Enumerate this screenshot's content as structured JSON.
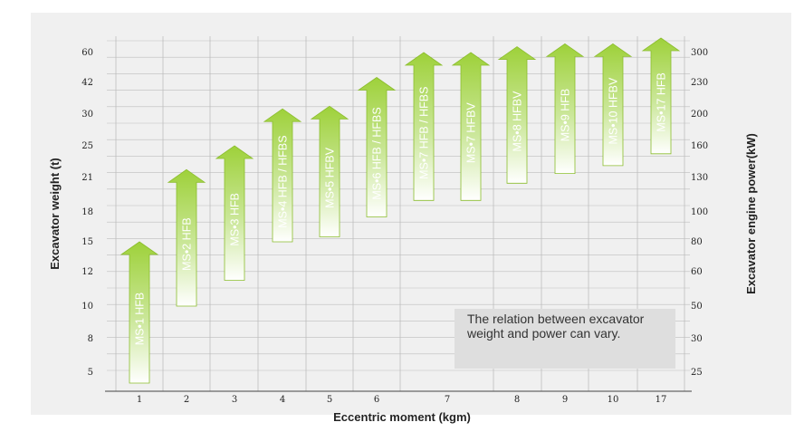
{
  "chart_data": {
    "type": "bar",
    "categories": [
      "1",
      "2",
      "3",
      "4",
      "5",
      "6",
      "7",
      "8",
      "9",
      "10",
      "17"
    ],
    "series": [
      {
        "labels": [
          "MS•1 HFB",
          "MS•2 HFB",
          "MS•3 HFB",
          "MS•4 HFB / HFBS",
          "MS•5 HFBV",
          "MS•6 HFB / HFBS",
          "MS•7 HFB / HFBS",
          "MS•7 HFBV",
          "MS•8 HFBV",
          "MS•9 HFB",
          "MS•10 HFBV",
          "MS•17 HFB"
        ],
        "category_index": [
          0,
          1,
          2,
          3,
          4,
          5,
          6,
          6,
          7,
          8,
          9,
          10
        ],
        "weight_low_t": [
          4,
          10,
          11.5,
          15,
          15.5,
          17.5,
          19,
          19,
          20.5,
          21.5,
          22.5,
          24
        ],
        "weight_high_t": [
          15,
          22,
          25,
          32,
          33,
          45,
          60,
          60,
          64,
          66,
          66,
          70
        ]
      }
    ],
    "xlabel": "Eccentric moment (kgm)",
    "ylabel": "Excavator weight (t)",
    "y2label": "Excavator  engine power(kW)",
    "y_ticks": [
      "60",
      "42",
      "30",
      "25",
      "21",
      "18",
      "15",
      "12",
      "10",
      "8",
      "5"
    ],
    "y2_ticks": [
      "300",
      "230",
      "200",
      "160",
      "130",
      "100",
      "80",
      "60",
      "50",
      "30",
      "25"
    ],
    "grid": true,
    "annotation": "The relation between excavator weight and power can vary.",
    "colors": {
      "arrow_top": "#9ed13a",
      "arrow_bottom": "#ffffff",
      "grid": "#bdbdbd",
      "text": "#222222"
    }
  }
}
